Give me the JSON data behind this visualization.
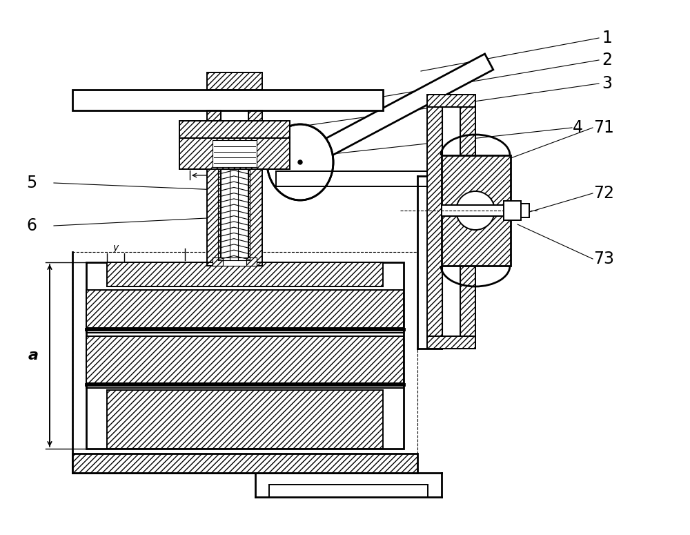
{
  "bg_color": "#ffffff",
  "lc": "#000000",
  "figsize": [
    10.0,
    7.75
  ],
  "dpi": 100,
  "label_fs": 17,
  "dim_fs": 13,
  "lw1": 0.8,
  "lw2": 1.4,
  "lw3": 2.0
}
